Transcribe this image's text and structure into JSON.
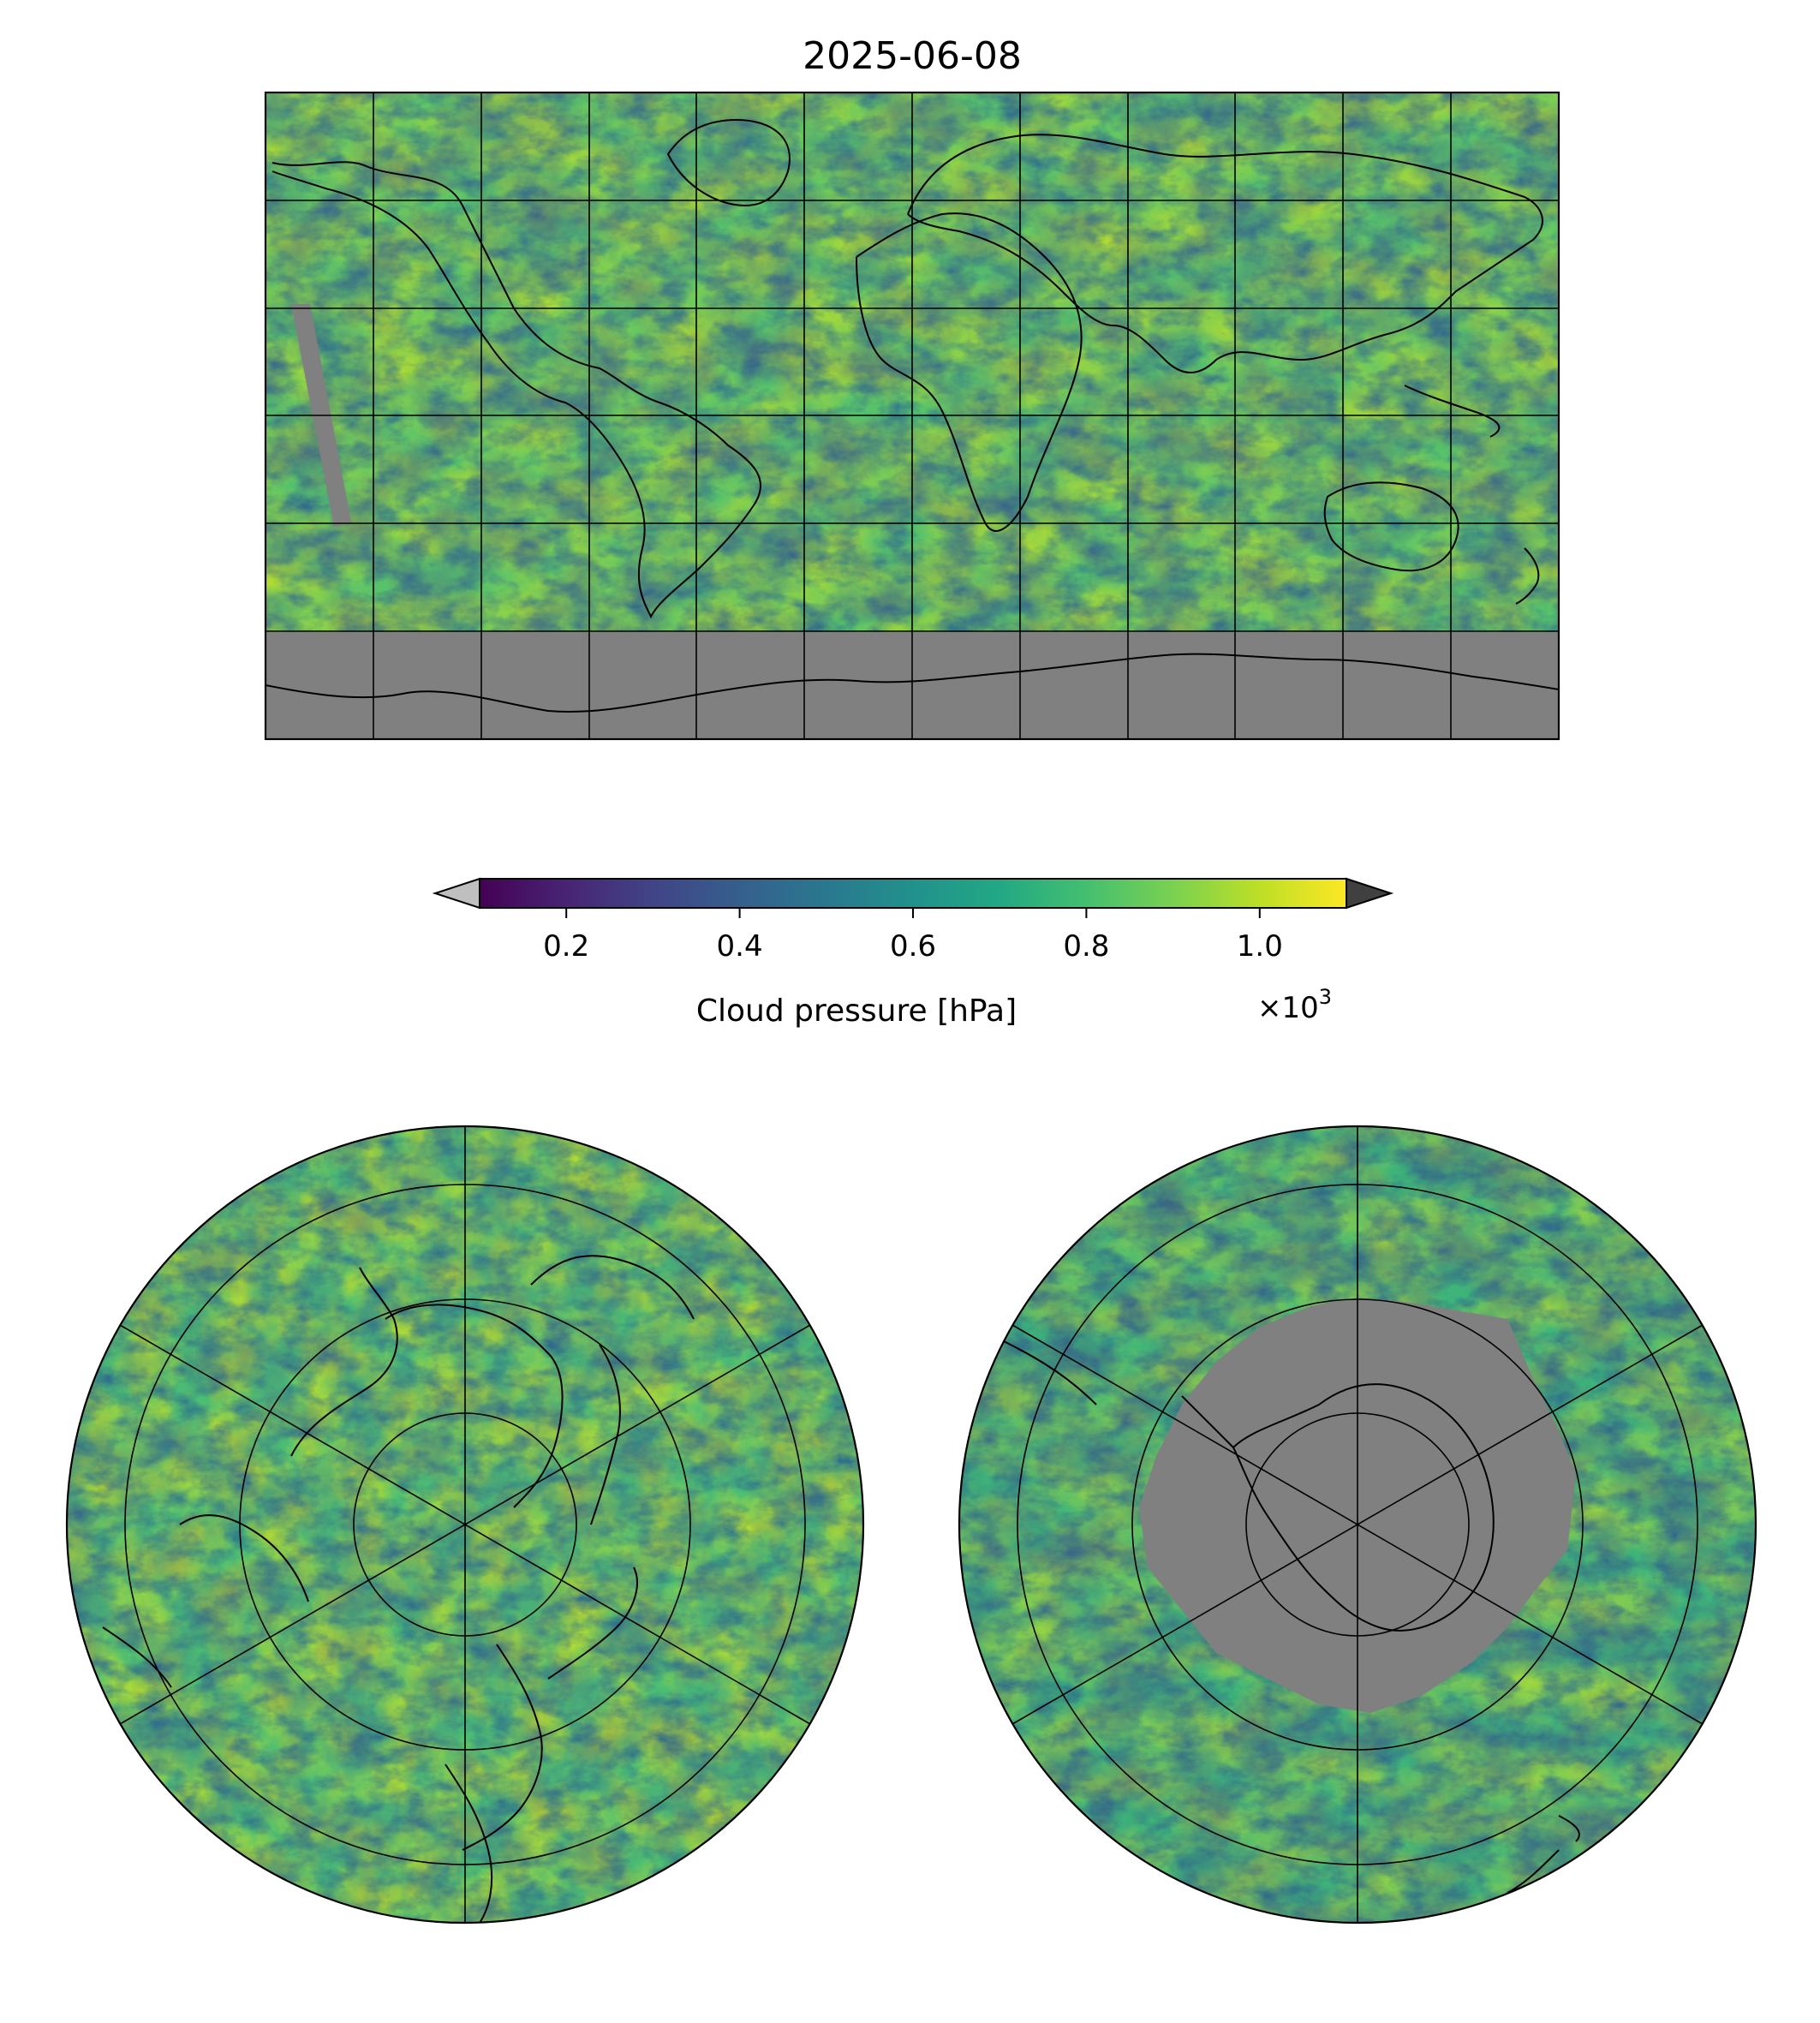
{
  "title": "2025-06-08",
  "colorbar": {
    "label": "Cloud pressure [hPa]",
    "ticks": [
      "0.2",
      "0.4",
      "0.6",
      "0.8",
      "1.0"
    ],
    "tick_values": [
      0.2,
      0.4,
      0.6,
      0.8,
      1.0
    ],
    "range": [
      0.1,
      1.1
    ],
    "offset_text_base": "×10",
    "offset_text_exp": "3",
    "colormap": "viridis",
    "extend_low_color": "#bfbfbf",
    "extend_high_color": "#404040"
  },
  "colors": {
    "missing_data": "#808080",
    "coastline": "#000000",
    "grid": "#000000"
  },
  "maps": {
    "global": {
      "projection": "plate-carree"
    },
    "north_polar": {
      "projection": "north-polar-stereographic"
    },
    "south_polar": {
      "projection": "south-polar-stereographic"
    }
  }
}
